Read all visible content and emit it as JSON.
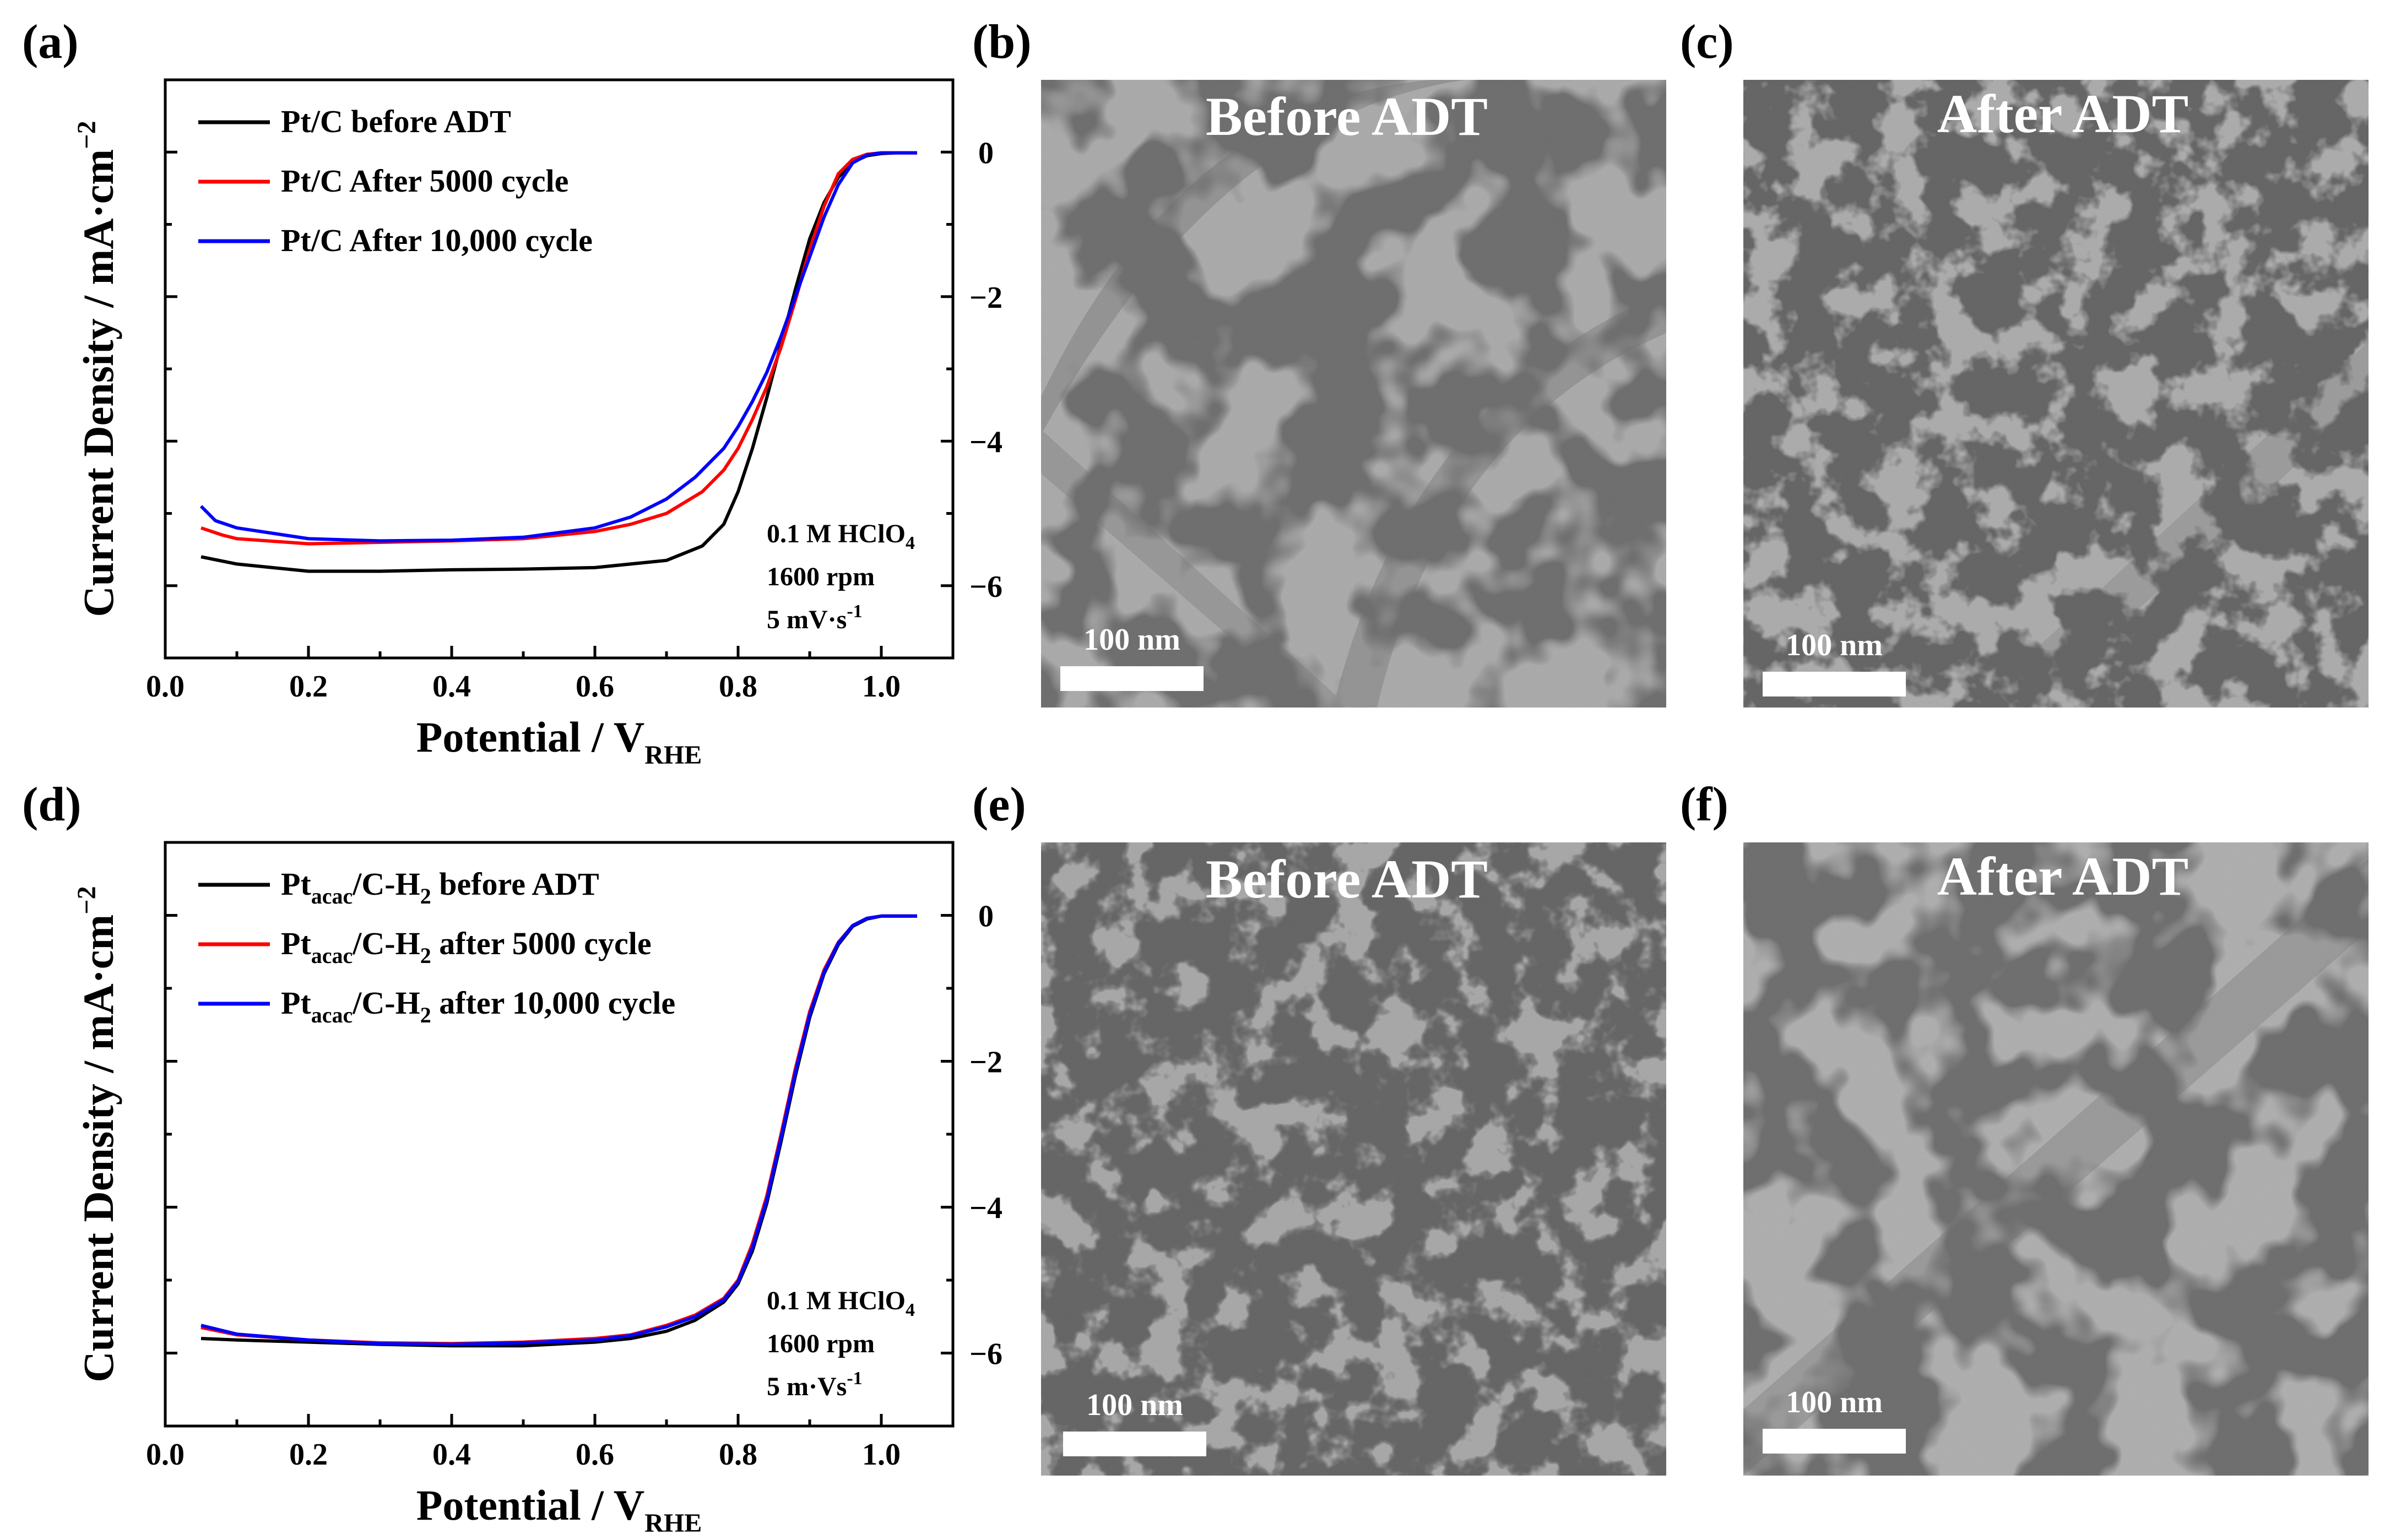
{
  "panel_labels": [
    "(a)",
    "(b)",
    "(c)",
    "(d)",
    "(e)",
    "(f)"
  ],
  "colors": {
    "before": "#000000",
    "after5000": "#ff0000",
    "after10000": "#0000ff"
  },
  "chart_data": [
    {
      "type": "line",
      "panel": "(a)",
      "xlabel_main": "Potential / V",
      "xlabel_sub": "RHE",
      "ylabel_main": "Current Density / mA·cm",
      "ylabel_sup": "−2",
      "xlim": [
        0.0,
        1.1
      ],
      "ylim": [
        -7,
        1
      ],
      "xticks": [
        "0.0",
        "0.2",
        "0.4",
        "0.6",
        "0.8",
        "1.0"
      ],
      "yticks": [
        "0",
        "−2",
        "−4",
        "−6"
      ],
      "legend": [
        {
          "name": "Pt/C before ADT"
        },
        {
          "name": "Pt/C After 5000 cycle"
        },
        {
          "name": "Pt/C After 10,000 cycle"
        }
      ],
      "annotations": {
        "line1_main": "0.1 M HClO",
        "line1_sub": "4",
        "line2": "1600 rpm",
        "line3_main": "5 mV·s",
        "line3_sup": "-1"
      },
      "series": [
        {
          "name": "Pt/C before ADT",
          "color": "#000000",
          "x": [
            0.05,
            0.1,
            0.2,
            0.3,
            0.4,
            0.5,
            0.6,
            0.7,
            0.75,
            0.78,
            0.8,
            0.82,
            0.84,
            0.86,
            0.88,
            0.9,
            0.92,
            0.94,
            0.96,
            0.98,
            1.0,
            1.02,
            1.05
          ],
          "y": [
            -5.6,
            -5.7,
            -5.8,
            -5.8,
            -5.78,
            -5.77,
            -5.75,
            -5.65,
            -5.45,
            -5.15,
            -4.7,
            -4.1,
            -3.4,
            -2.65,
            -1.9,
            -1.2,
            -0.7,
            -0.35,
            -0.14,
            -0.05,
            -0.02,
            -0.01,
            -0.01
          ]
        },
        {
          "name": "Pt/C After 5000 cycle",
          "color": "#ff0000",
          "x": [
            0.05,
            0.08,
            0.1,
            0.2,
            0.3,
            0.4,
            0.5,
            0.6,
            0.65,
            0.7,
            0.75,
            0.78,
            0.8,
            0.82,
            0.84,
            0.86,
            0.88,
            0.9,
            0.92,
            0.94,
            0.96,
            0.98,
            1.0,
            1.05
          ],
          "y": [
            -5.2,
            -5.3,
            -5.35,
            -5.42,
            -5.4,
            -5.38,
            -5.35,
            -5.25,
            -5.15,
            -5.0,
            -4.7,
            -4.4,
            -4.1,
            -3.7,
            -3.25,
            -2.7,
            -2.05,
            -1.35,
            -0.75,
            -0.3,
            -0.1,
            -0.03,
            -0.01,
            -0.01
          ]
        },
        {
          "name": "Pt/C After 10,000 cycle",
          "color": "#0000ff",
          "x": [
            0.05,
            0.07,
            0.1,
            0.2,
            0.3,
            0.4,
            0.5,
            0.6,
            0.65,
            0.7,
            0.74,
            0.78,
            0.8,
            0.82,
            0.84,
            0.86,
            0.88,
            0.9,
            0.92,
            0.94,
            0.96,
            0.98,
            1.0,
            1.05
          ],
          "y": [
            -4.9,
            -5.1,
            -5.2,
            -5.35,
            -5.38,
            -5.37,
            -5.33,
            -5.2,
            -5.05,
            -4.8,
            -4.5,
            -4.1,
            -3.8,
            -3.45,
            -3.05,
            -2.55,
            -2.0,
            -1.45,
            -0.9,
            -0.45,
            -0.15,
            -0.04,
            -0.01,
            -0.01
          ]
        }
      ]
    },
    {
      "type": "line",
      "panel": "(d)",
      "xlabel_main": "Potential / V",
      "xlabel_sub": "RHE",
      "ylabel_main": "Current Density / mA·cm",
      "ylabel_sup": "−2",
      "xlim": [
        0.0,
        1.1
      ],
      "ylim": [
        -7,
        1
      ],
      "xticks": [
        "0.0",
        "0.2",
        "0.4",
        "0.6",
        "0.8",
        "1.0"
      ],
      "yticks": [
        "0",
        "−2",
        "−4",
        "−6"
      ],
      "legend": [
        {
          "name_main": "Pt",
          "name_sub": "acac",
          "name_mid": "/C-H",
          "name_sub2": "2",
          "name_tail": " before ADT"
        },
        {
          "name_main": "Pt",
          "name_sub": "acac",
          "name_mid": "/C-H",
          "name_sub2": "2",
          "name_tail": " after 5000 cycle"
        },
        {
          "name_main": "Pt",
          "name_sub": "acac",
          "name_mid": "/C-H",
          "name_sub2": "2",
          "name_tail": " after 10,000 cycle"
        }
      ],
      "annotations": {
        "line1_main": "0.1 M HClO",
        "line1_sub": "4",
        "line2": "1600 rpm",
        "line3_main": "5 m·Vs",
        "line3_sup": "-1"
      },
      "series": [
        {
          "name": "Ptacac/C-H2 before ADT",
          "color": "#000000",
          "x": [
            0.05,
            0.1,
            0.2,
            0.3,
            0.4,
            0.5,
            0.6,
            0.65,
            0.7,
            0.74,
            0.78,
            0.8,
            0.82,
            0.84,
            0.86,
            0.88,
            0.9,
            0.92,
            0.94,
            0.96,
            0.98,
            1.0,
            1.05
          ],
          "y": [
            -5.8,
            -5.82,
            -5.85,
            -5.88,
            -5.9,
            -5.9,
            -5.85,
            -5.8,
            -5.7,
            -5.55,
            -5.3,
            -5.05,
            -4.6,
            -3.95,
            -3.1,
            -2.2,
            -1.4,
            -0.8,
            -0.4,
            -0.15,
            -0.05,
            -0.01,
            -0.01
          ]
        },
        {
          "name": "Ptacac/C-H2 after 5000 cycle",
          "color": "#ff0000",
          "x": [
            0.05,
            0.1,
            0.2,
            0.3,
            0.4,
            0.5,
            0.6,
            0.65,
            0.7,
            0.74,
            0.78,
            0.8,
            0.82,
            0.84,
            0.86,
            0.88,
            0.9,
            0.92,
            0.94,
            0.96,
            0.98,
            1.0,
            1.05
          ],
          "y": [
            -5.65,
            -5.75,
            -5.82,
            -5.86,
            -5.87,
            -5.85,
            -5.8,
            -5.75,
            -5.62,
            -5.48,
            -5.25,
            -5.0,
            -4.5,
            -3.85,
            -3.0,
            -2.1,
            -1.32,
            -0.75,
            -0.37,
            -0.14,
            -0.04,
            -0.01,
            -0.01
          ]
        },
        {
          "name": "Ptacac/C-H2 after 10,000 cycle",
          "color": "#0000ff",
          "x": [
            0.05,
            0.1,
            0.2,
            0.3,
            0.4,
            0.5,
            0.6,
            0.65,
            0.7,
            0.74,
            0.78,
            0.8,
            0.82,
            0.84,
            0.86,
            0.88,
            0.9,
            0.92,
            0.94,
            0.96,
            0.98,
            1.0,
            1.05
          ],
          "y": [
            -5.62,
            -5.74,
            -5.82,
            -5.87,
            -5.88,
            -5.86,
            -5.82,
            -5.76,
            -5.64,
            -5.5,
            -5.27,
            -5.02,
            -4.55,
            -3.9,
            -3.05,
            -2.15,
            -1.36,
            -0.78,
            -0.38,
            -0.14,
            -0.04,
            -0.01,
            -0.01
          ]
        }
      ]
    }
  ],
  "micrographs": [
    {
      "panel": "(b)",
      "title": "Before ADT",
      "scale_bar": "100 nm"
    },
    {
      "panel": "(c)",
      "title": "After ADT",
      "scale_bar": "100 nm"
    },
    {
      "panel": "(e)",
      "title": "Before ADT",
      "scale_bar": "100 nm"
    },
    {
      "panel": "(f)",
      "title": "After ADT",
      "scale_bar": "100 nm"
    }
  ]
}
